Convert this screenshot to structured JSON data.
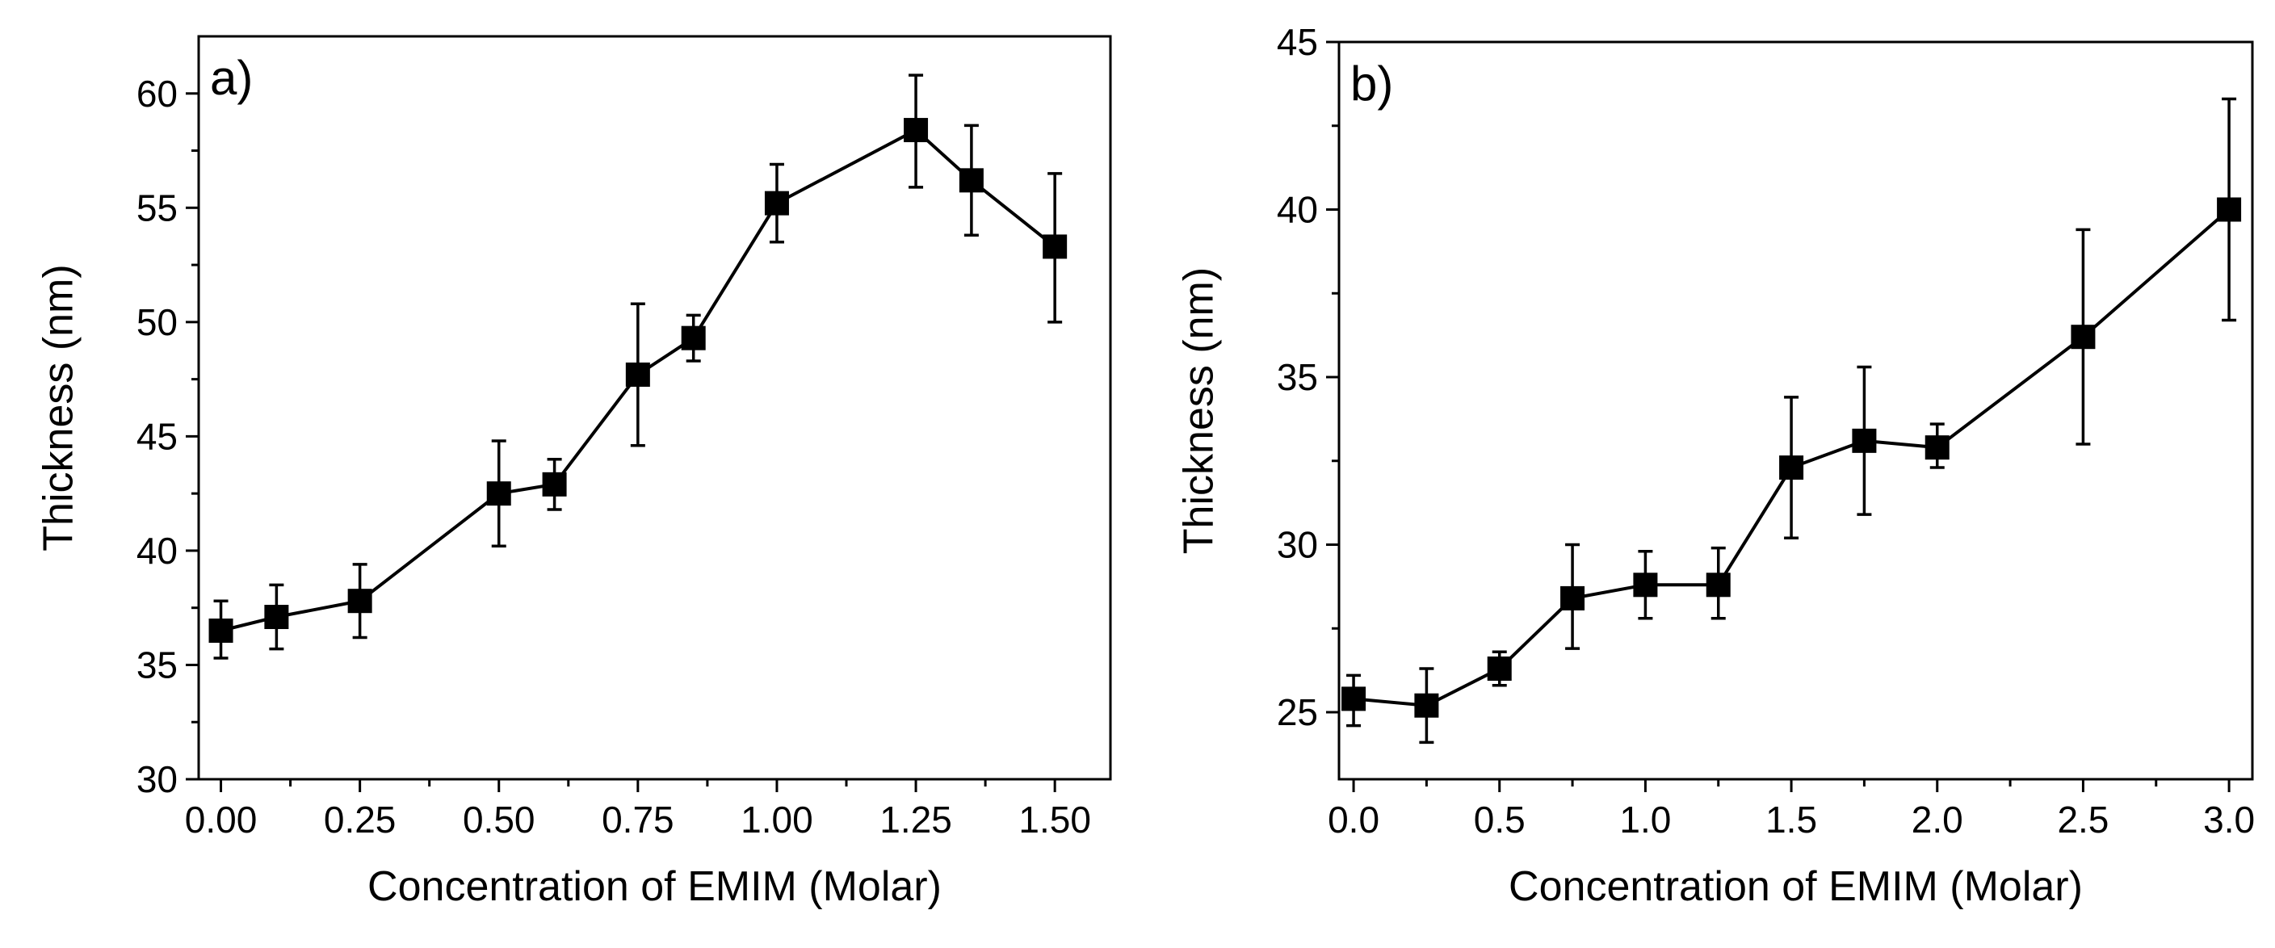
{
  "chart_data": [
    {
      "type": "line",
      "panel_label": "a)",
      "xlabel": "Concentration of EMIM (Molar)",
      "ylabel": "Thickness (nm)",
      "xlim": [
        -0.04,
        1.6
      ],
      "ylim": [
        30,
        62.5
      ],
      "xticks": [
        0.0,
        0.25,
        0.5,
        0.75,
        1.0,
        1.25,
        1.5
      ],
      "xtick_labels": [
        "0.00",
        "0.25",
        "0.50",
        "0.75",
        "1.00",
        "1.25",
        "1.50"
      ],
      "yticks": [
        30,
        35,
        40,
        45,
        50,
        55,
        60
      ],
      "ytick_labels": [
        "30",
        "35",
        "40",
        "45",
        "50",
        "55",
        "60"
      ],
      "grid": false,
      "marker": "square",
      "series": [
        {
          "x": [
            0.0,
            0.1,
            0.25,
            0.5,
            0.6,
            0.75,
            0.85,
            1.0,
            1.25,
            1.35,
            1.5
          ],
          "y": [
            36.5,
            37.1,
            37.8,
            42.5,
            42.9,
            47.7,
            49.3,
            55.2,
            58.4,
            56.2,
            53.3
          ],
          "err_low": [
            35.3,
            35.7,
            36.2,
            40.2,
            41.8,
            44.6,
            48.3,
            53.5,
            55.9,
            53.8,
            50.0
          ],
          "err_high": [
            37.8,
            38.5,
            39.4,
            44.8,
            44.0,
            50.8,
            50.3,
            56.9,
            60.8,
            58.6,
            56.5
          ]
        }
      ]
    },
    {
      "type": "line",
      "panel_label": "b)",
      "xlabel": "Concentration of EMIM (Molar)",
      "ylabel": "Thickness (nm)",
      "xlim": [
        -0.05,
        3.08
      ],
      "ylim": [
        23,
        45
      ],
      "xticks": [
        0.0,
        0.5,
        1.0,
        1.5,
        2.0,
        2.5,
        3.0
      ],
      "xtick_labels": [
        "0.0",
        "0.5",
        "1.0",
        "1.5",
        "2.0",
        "2.5",
        "3.0"
      ],
      "yticks": [
        25,
        30,
        35,
        40,
        45
      ],
      "ytick_labels": [
        "25",
        "30",
        "35",
        "40",
        "45"
      ],
      "grid": false,
      "marker": "square",
      "series": [
        {
          "x": [
            0.0,
            0.25,
            0.5,
            0.75,
            1.0,
            1.25,
            1.5,
            1.75,
            2.0,
            2.5,
            3.0
          ],
          "y": [
            25.4,
            25.2,
            26.3,
            28.4,
            28.8,
            28.8,
            32.3,
            33.1,
            32.9,
            36.2,
            40.0
          ],
          "err_low": [
            24.6,
            24.1,
            25.8,
            26.9,
            27.8,
            27.8,
            30.2,
            30.9,
            32.3,
            33.0,
            36.7
          ],
          "err_high": [
            26.1,
            26.3,
            26.8,
            30.0,
            29.8,
            29.9,
            34.4,
            35.3,
            33.6,
            39.4,
            43.3
          ]
        }
      ]
    }
  ]
}
